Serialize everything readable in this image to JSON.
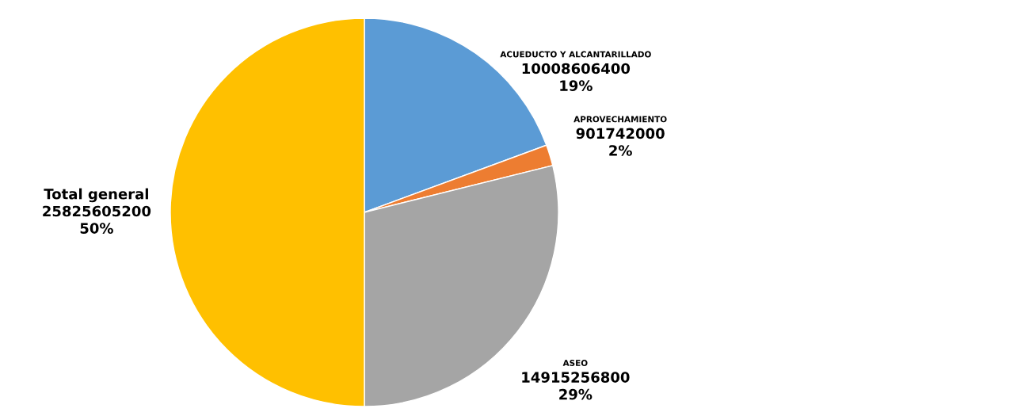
{
  "chart_data": {
    "type": "pie",
    "categories": [
      "ACUEDUCTO Y ALCANTARILLADO",
      "APROVECHAMIENTO",
      "ASEO",
      "Total general"
    ],
    "values": [
      10008606400,
      901742000,
      14915256800,
      25825605200
    ],
    "colors": [
      "#5b9bd5",
      "#ed7d31",
      "#a5a5a5",
      "#ffc000"
    ],
    "value_labels": [
      "10008606400\n19%",
      "901742000\n2%",
      "14915256800\n29%",
      "25825605200\n50%"
    ],
    "legend": false
  }
}
